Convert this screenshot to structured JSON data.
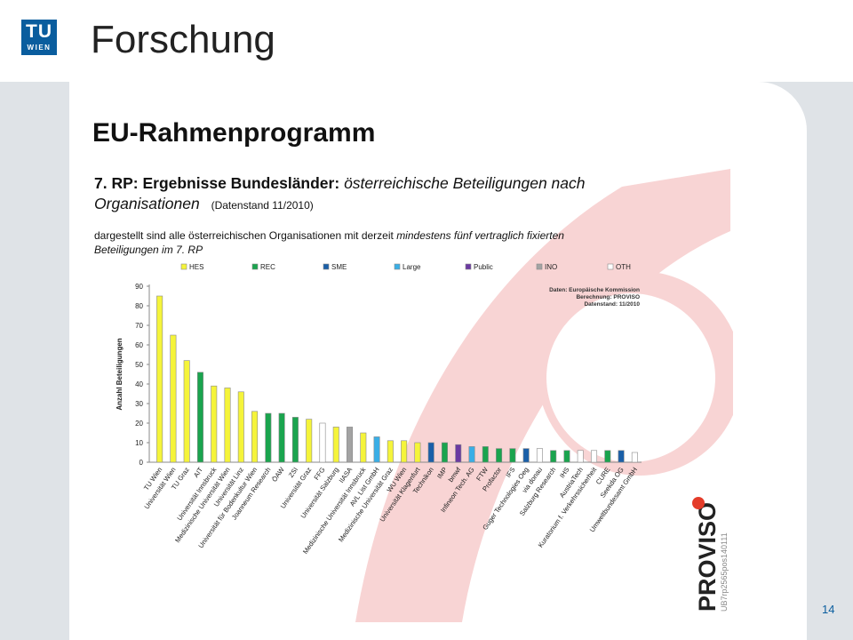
{
  "header": {
    "logo_tu": "TU",
    "logo_wien": "WIEN",
    "title": "Forschung"
  },
  "section": {
    "subtitle": "EU-Rahmenprogramm"
  },
  "footer": {
    "page_number": "14"
  },
  "figure": {
    "heading_bold": "7. RP: Ergebnisse Bundesländer:",
    "heading_italic_1": "österreichische Beteiligungen nach",
    "heading_italic_2": "Organisationen",
    "heading_small": "(Datenstand 11/2010)",
    "desc_1_plain": "dargestellt sind alle österreichischen Organisationen mit derzeit",
    "desc_1_italic": "mindestens fünf vertraglich fixierten",
    "desc_2_italic": "Beteiligungen im 7. RP",
    "note_lines": [
      "Daten: Europäische Kommission",
      "Berechnung: PROVISO",
      "Datenstand: 11/2010"
    ],
    "brand": "PROVISO",
    "brand_code": "UB7rp2565pos140111"
  },
  "colors": {
    "HES": "#f5f43a",
    "REC": "#1aa44e",
    "SME": "#1a5fa8",
    "Large": "#3aaee6",
    "Public": "#6b3aa2",
    "INO": "#a3a3a3",
    "OTH": "#ffffff",
    "decor_red": "#f8d4d4",
    "brand_red": "#e43c2a"
  },
  "chart_data": {
    "type": "bar",
    "title": "",
    "xlabel": "",
    "ylabel": "Anzahl Beteiligungen",
    "ylim": [
      0,
      90
    ],
    "yticks": [
      0,
      10,
      20,
      30,
      40,
      50,
      60,
      70,
      80,
      90
    ],
    "grid": false,
    "legend": [
      "HES",
      "REC",
      "SME",
      "Large",
      "Public",
      "INO",
      "OTH"
    ],
    "legend_position": "top",
    "categories": [
      "TU Wien",
      "Universität Wien",
      "TU Graz",
      "AIT",
      "Universität Innsbruck",
      "Medizinische Universität Wien",
      "Universität Linz",
      "Universität für Bodenkultur Wien",
      "Joanneum Research",
      "ÖAW",
      "ZSI",
      "Universität Graz",
      "FFG",
      "Universität Salzburg",
      "IIASA",
      "Medizinische Universität Innsbruck",
      "AVL List GmbH",
      "Medizinische Universität Graz",
      "WU Wien",
      "Universität Klagenfurt",
      "Technikon",
      "IMP",
      "bmwf",
      "Infineon Tech. AG",
      "FTW",
      "Profactor",
      "IFS",
      "Guger Technologies Oeg",
      "via donau",
      "Salzburg Research",
      "IHS",
      "AustriaTech",
      "Kuratorium f. Verkehrssicherheit",
      "CURE",
      "Seekda OG",
      "Umweltbundesamt GmbH"
    ],
    "values": [
      85,
      65,
      52,
      46,
      39,
      38,
      36,
      26,
      25,
      25,
      23,
      22,
      20,
      18,
      18,
      15,
      13,
      11,
      11,
      10,
      10,
      10,
      9,
      8,
      8,
      7,
      7,
      7,
      7,
      6,
      6,
      6,
      6,
      6,
      6,
      5
    ],
    "types": [
      "HES",
      "HES",
      "HES",
      "REC",
      "HES",
      "HES",
      "HES",
      "HES",
      "REC",
      "REC",
      "REC",
      "HES",
      "OTH",
      "HES",
      "INO",
      "HES",
      "Large",
      "HES",
      "HES",
      "HES",
      "SME",
      "REC",
      "Public",
      "Large",
      "REC",
      "REC",
      "REC",
      "SME",
      "OTH",
      "REC",
      "REC",
      "OTH",
      "OTH",
      "REC",
      "SME",
      "OTH"
    ]
  }
}
